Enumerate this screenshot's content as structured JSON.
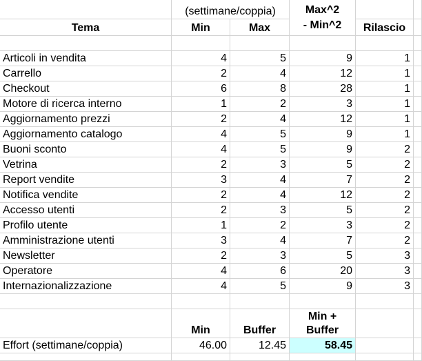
{
  "header": {
    "unit_note": "(settimane/coppia)",
    "col_theme": "Tema",
    "col_min": "Min",
    "col_max": "Max",
    "col_diff_line1": "Max^2",
    "col_diff_line2": "- Min^2",
    "col_release": "Rilascio"
  },
  "rows": [
    {
      "theme": "Articoli in vendita",
      "min": "4",
      "max": "5",
      "diff": "9",
      "release": "1"
    },
    {
      "theme": "Carrello",
      "min": "2",
      "max": "4",
      "diff": "12",
      "release": "1"
    },
    {
      "theme": "Checkout",
      "min": "6",
      "max": "8",
      "diff": "28",
      "release": "1"
    },
    {
      "theme": "Motore di ricerca interno",
      "min": "1",
      "max": "2",
      "diff": "3",
      "release": "1"
    },
    {
      "theme": "Aggiornamento prezzi",
      "min": "2",
      "max": "4",
      "diff": "12",
      "release": "1"
    },
    {
      "theme": "Aggiornamento catalogo",
      "min": "4",
      "max": "5",
      "diff": "9",
      "release": "1"
    },
    {
      "theme": "Buoni sconto",
      "min": "4",
      "max": "5",
      "diff": "9",
      "release": "2"
    },
    {
      "theme": "Vetrina",
      "min": "2",
      "max": "3",
      "diff": "5",
      "release": "2"
    },
    {
      "theme": "Report vendite",
      "min": "3",
      "max": "4",
      "diff": "7",
      "release": "2"
    },
    {
      "theme": "Notifica vendite",
      "min": "2",
      "max": "4",
      "diff": "12",
      "release": "2"
    },
    {
      "theme": "Accesso utenti",
      "min": "2",
      "max": "3",
      "diff": "5",
      "release": "2"
    },
    {
      "theme": "Profilo utente",
      "min": "1",
      "max": "2",
      "diff": "3",
      "release": "2"
    },
    {
      "theme": "Amministrazione utenti",
      "min": "3",
      "max": "4",
      "diff": "7",
      "release": "2"
    },
    {
      "theme": "Newsletter",
      "min": "2",
      "max": "3",
      "diff": "5",
      "release": "3"
    },
    {
      "theme": "Operatore",
      "min": "4",
      "max": "6",
      "diff": "20",
      "release": "3"
    },
    {
      "theme": "Internazionalizzazione",
      "min": "4",
      "max": "5",
      "diff": "9",
      "release": "3"
    }
  ],
  "summary": {
    "min_label": "Min",
    "buffer_label": "Buffer",
    "total_label_line1": "Min +",
    "total_label_line2": "Buffer",
    "effort_label": "Effort (settimane/coppia)",
    "min_value": "46.00",
    "buffer_value": "12.45",
    "total_value": "58.45"
  },
  "colors": {
    "gridline": "#d4d4d4",
    "highlight": "#ccffff"
  }
}
